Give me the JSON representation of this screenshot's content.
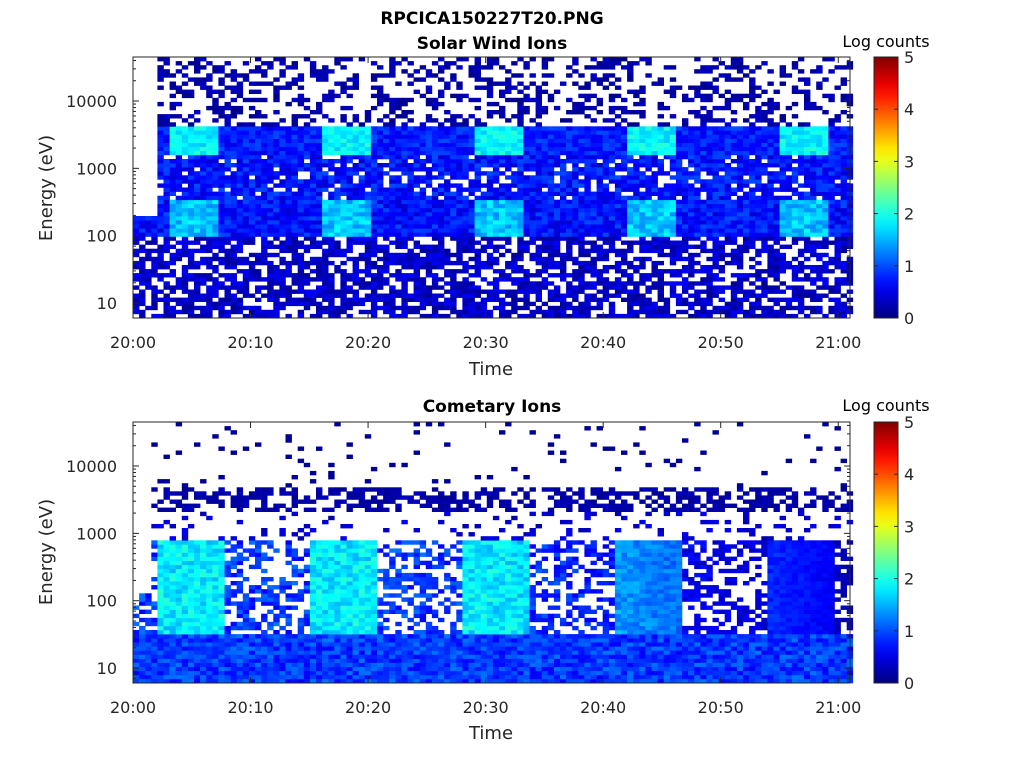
{
  "figure_title": "RPCICA150227T20.PNG",
  "chart_data": [
    {
      "type": "heatmap",
      "title": "Solar Wind Ions",
      "xlabel": "Time",
      "ylabel": "Energy (eV)",
      "yscale": "log",
      "ylim": [
        6,
        45000
      ],
      "xlim": [
        "20:00",
        "21:01"
      ],
      "xticks": [
        "20:00",
        "20:10",
        "20:20",
        "20:30",
        "20:40",
        "20:50",
        "21:00"
      ],
      "yticks": [
        "10",
        "100",
        "1000",
        "10000"
      ],
      "colorbar": {
        "label": "Log counts",
        "range": [
          0,
          5
        ],
        "ticks": [
          "0",
          "1",
          "2",
          "3",
          "4",
          "5"
        ],
        "colormap": "jet"
      },
      "description_of_structure": "Repeating ~3 min scans; peak ~1.8-2 log counts near 2000-3000 eV and 100-300 eV, background ~0.3-1 up to ~40000 eV",
      "peak_bands": [
        {
          "energy_range_ev": [
            1500,
            4000
          ],
          "log_counts": 1.9
        },
        {
          "energy_range_ev": [
            100,
            350
          ],
          "log_counts": 1.6
        },
        {
          "energy_range_ev": [
            6,
            30
          ],
          "log_counts": 0.4
        }
      ]
    },
    {
      "type": "heatmap",
      "title": "Cometary Ions",
      "xlabel": "Time",
      "ylabel": "Energy (eV)",
      "yscale": "log",
      "ylim": [
        6,
        45000
      ],
      "xlim": [
        "20:00",
        "21:01"
      ],
      "xticks": [
        "20:00",
        "20:10",
        "20:20",
        "20:30",
        "20:40",
        "20:50",
        "21:00"
      ],
      "yticks": [
        "10",
        "100",
        "1000",
        "10000"
      ],
      "colorbar": {
        "label": "Log counts",
        "range": [
          0,
          5
        ],
        "ticks": [
          "0",
          "1",
          "2",
          "3",
          "4",
          "5"
        ],
        "colormap": "jet"
      },
      "description_of_structure": "Repeating scans; main population 10-1000 eV with peak ~2 log counts, decreasing after 20:40; sparse counts near 2000-5000 eV",
      "peak_bands": [
        {
          "energy_range_ev": [
            30,
            500
          ],
          "log_counts": 2.0
        },
        {
          "energy_range_ev": [
            6,
            30
          ],
          "log_counts": 1.0
        },
        {
          "energy_range_ev": [
            2000,
            5000
          ],
          "log_counts": 0.2
        }
      ]
    }
  ]
}
